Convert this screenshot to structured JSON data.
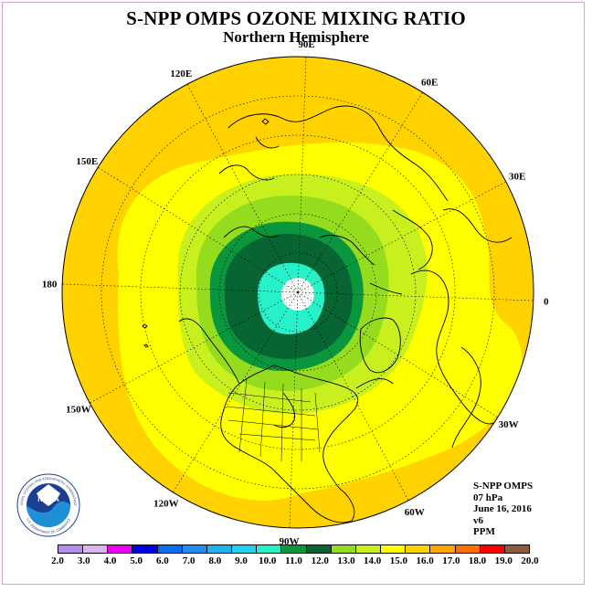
{
  "title": "S-NPP OMPS OZONE MIXING RATIO",
  "subtitle": "Northern Hemisphere",
  "longitude_labels": [
    "90E",
    "60E",
    "30E",
    "0",
    "30W",
    "60W",
    "90W",
    "120W",
    "150W",
    "180",
    "150E",
    "120E"
  ],
  "info": {
    "instrument": "S-NPP OMPS",
    "pressure": "07 hPa",
    "date": "June 16, 2016",
    "version": "v6",
    "units": "PPM"
  },
  "logo": {
    "text": "NOAA",
    "ring_text": "NATIONAL OCEANIC AND ATMOSPHERIC ADMINISTRATION",
    "bottom_text": "U.S. DEPARTMENT OF COMMERCE"
  },
  "colorbar": {
    "labels": [
      "2.0",
      "3.0",
      "4.0",
      "5.0",
      "6.0",
      "7.0",
      "8.0",
      "9.0",
      "10.0",
      "11.0",
      "12.0",
      "13.0",
      "14.0",
      "15.0",
      "16.0",
      "17.0",
      "18.0",
      "19.0",
      "20.0"
    ],
    "colors": [
      "#b98cf0",
      "#dcb4f0",
      "#f000f0",
      "#0000e6",
      "#0a6ef0",
      "#1e8cf0",
      "#1eb4f0",
      "#1ed2f0",
      "#28f0c8",
      "#0a963c",
      "#086432",
      "#96dc1e",
      "#c8f01e",
      "#ffff00",
      "#ffd200",
      "#ffa500",
      "#ff6e00",
      "#ff0000",
      "#8c5a3c"
    ]
  }
}
